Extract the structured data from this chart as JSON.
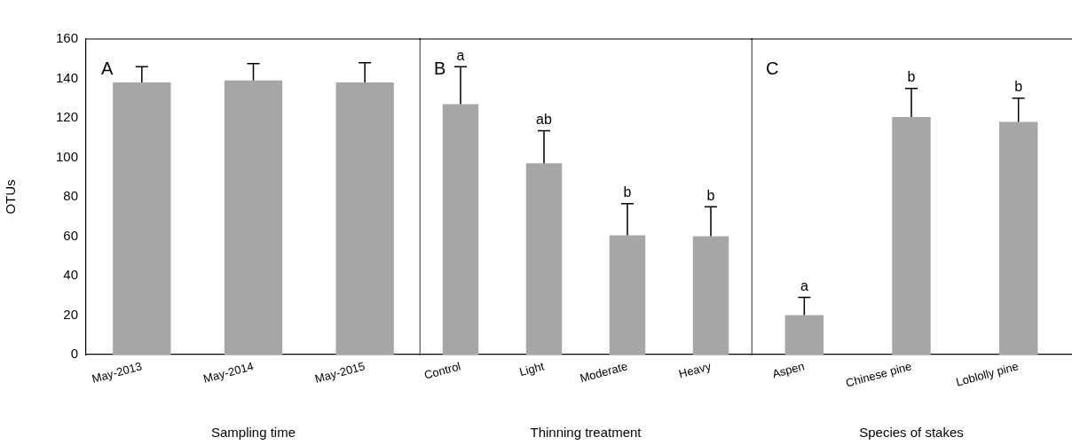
{
  "chart_data": [
    {
      "type": "bar",
      "categories": [
        "May-2013",
        "May-2014",
        "May-2015"
      ],
      "values": [
        138,
        139,
        138
      ],
      "errors": [
        [
          138,
          146
        ],
        [
          139,
          147.5
        ],
        [
          138,
          148
        ]
      ],
      "color": "#a6a6a6",
      "ylim": [
        0,
        160
      ],
      "yticks": [
        0,
        20,
        40,
        60,
        80,
        100,
        120,
        140,
        160
      ],
      "xlabel": "Sampling time",
      "ylabel": "OTUs",
      "annotations": [
        "A"
      ]
    },
    {
      "type": "bar",
      "categories": [
        "Control",
        "Light",
        "Moderate",
        "Heavy"
      ],
      "values": [
        127,
        97,
        60.5,
        60
      ],
      "errors": [
        [
          127,
          146
        ],
        [
          97,
          113.5
        ],
        [
          60.5,
          76.5
        ],
        [
          60,
          75
        ]
      ],
      "color": "#a6a6a6",
      "ylim": [
        0,
        160
      ],
      "yticks": [
        0,
        20,
        40,
        60,
        80,
        100,
        120,
        140,
        160
      ],
      "tick_labels": "x",
      "xlabel": "Thinning treatment",
      "annotations": [
        "B",
        {
          "text": "a",
          "x": "Control",
          "y": 146
        },
        {
          "text": "ab",
          "x": "Light",
          "y": 113.5
        },
        {
          "text": "b",
          "x": "Moderate",
          "y": 76.5
        },
        {
          "text": "b",
          "x": "Heavy",
          "y": 75
        }
      ]
    },
    {
      "type": "bar",
      "categories": [
        "Aspen",
        "Chinese pine",
        "Loblolly pine"
      ],
      "values": [
        20,
        120.5,
        118
      ],
      "errors": [
        [
          20,
          29
        ],
        [
          120.5,
          135
        ],
        [
          118,
          130
        ]
      ],
      "color": "#a6a6a6",
      "ylim": [
        0,
        160
      ],
      "yticks": [
        0,
        20,
        40,
        60,
        80,
        100,
        120,
        140,
        160
      ],
      "tick_labels": "x",
      "xlabel": "Species of stakes",
      "annotations": [
        "C",
        {
          "text": "a",
          "x": "Aspen",
          "y": 29
        },
        {
          "text": "b",
          "x": "Chinese pine",
          "y": 135
        },
        {
          "text": "b",
          "x": "Loblolly pine",
          "y": 130
        }
      ]
    }
  ]
}
